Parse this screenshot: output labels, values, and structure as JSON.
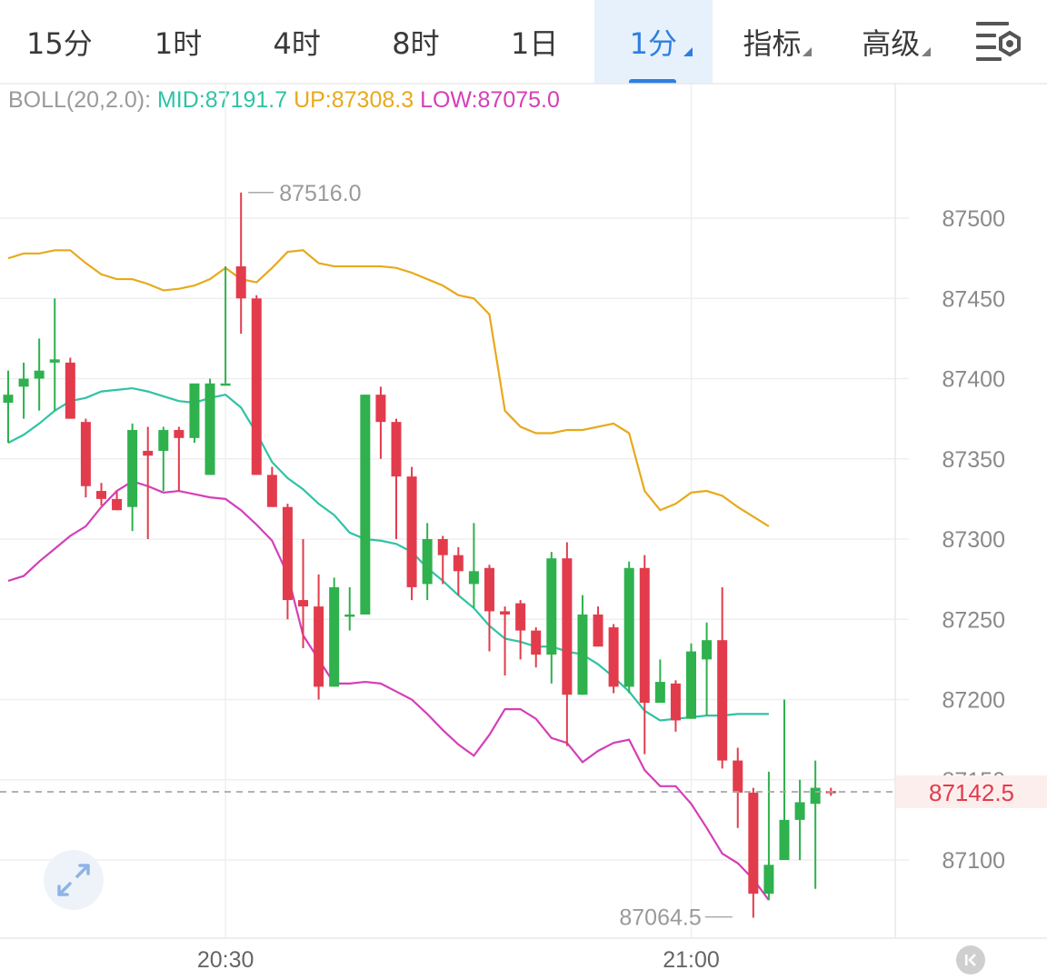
{
  "tabs": [
    {
      "label": "15分",
      "active": false,
      "dropdown": false
    },
    {
      "label": "1时",
      "active": false,
      "dropdown": false
    },
    {
      "label": "4时",
      "active": false,
      "dropdown": false
    },
    {
      "label": "8时",
      "active": false,
      "dropdown": false
    },
    {
      "label": "1日",
      "active": false,
      "dropdown": false
    },
    {
      "label": "1分",
      "active": true,
      "dropdown": true
    },
    {
      "label": "指标",
      "active": false,
      "dropdown": true
    },
    {
      "label": "高级",
      "active": false,
      "dropdown": true
    }
  ],
  "settings_icon": "chart-settings-icon",
  "indicator": {
    "name": "BOLL(20,2.0):",
    "mid_label": "MID:87191.7",
    "up_label": "UP:87308.3",
    "low_label": "LOW:87075.0",
    "colors": {
      "name": "#9a9a9a",
      "mid": "#2fc3a4",
      "up": "#e8a91b",
      "low": "#d43fb8"
    }
  },
  "chart_data": {
    "type": "candlestick",
    "interval": "1分",
    "y_ticks": [
      87500,
      87450,
      87400,
      87350,
      87300,
      87250,
      87200,
      87150,
      87100
    ],
    "ylim": [
      87050,
      87660
    ],
    "x_ticks": [
      {
        "label": "20:30",
        "index": 14
      },
      {
        "label": "21:00",
        "index": 44
      }
    ],
    "current_price": 87142.5,
    "current_price_label": "87142.5",
    "max_marker": {
      "value": 87516.0,
      "label": "87516.0",
      "index": 15
    },
    "min_marker": {
      "value": 87064.5,
      "label": "87064.5",
      "index": 47
    },
    "colors": {
      "up": "#2fb14e",
      "down": "#e23c4c",
      "grid": "#efefef",
      "axis_text": "#8a8a8a"
    },
    "candles": [
      [
        87385,
        87405,
        87390,
        87360
      ],
      [
        87395,
        87410,
        87400,
        87375
      ],
      [
        87400,
        87425,
        87405,
        87380
      ],
      [
        87410,
        87450,
        87412,
        87380
      ],
      [
        87410,
        87413,
        87375,
        87375
      ],
      [
        87373,
        87375,
        87333,
        87326
      ],
      [
        87330,
        87335,
        87325,
        87321
      ],
      [
        87325,
        87330,
        87318,
        87318
      ],
      [
        87320,
        87372,
        87368,
        87305
      ],
      [
        87355,
        87370,
        87352,
        87300
      ],
      [
        87355,
        87370,
        87368,
        87330
      ],
      [
        87368,
        87370,
        87363,
        87330
      ],
      [
        87363,
        87368,
        87397,
        87360
      ],
      [
        87340,
        87400,
        87397,
        87340
      ],
      [
        87397,
        87470,
        87397,
        87397
      ],
      [
        87470,
        87516,
        87450,
        87428
      ],
      [
        87450,
        87452,
        87340,
        87340
      ],
      [
        87340,
        87345,
        87320,
        87320
      ],
      [
        87320,
        87322,
        87262,
        87250
      ],
      [
        87262,
        87300,
        87258,
        87232
      ],
      [
        87258,
        87278,
        87208,
        87200
      ],
      [
        87208,
        87276,
        87270,
        87208
      ],
      [
        87253,
        87270,
        87253,
        87243
      ],
      [
        87253,
        87390,
        87390,
        87253
      ],
      [
        87390,
        87395,
        87373,
        87350
      ],
      [
        87373,
        87375,
        87339,
        87300
      ],
      [
        87339,
        87345,
        87270,
        87262
      ],
      [
        87272,
        87310,
        87300,
        87262
      ],
      [
        87300,
        87302,
        87290,
        87272
      ],
      [
        87290,
        87295,
        87280,
        87265
      ],
      [
        87272,
        87310,
        87280,
        87257
      ],
      [
        87282,
        87284,
        87255,
        87230
      ],
      [
        87255,
        87258,
        87253,
        87215
      ],
      [
        87260,
        87262,
        87243,
        87225
      ],
      [
        87243,
        87245,
        87228,
        87220
      ],
      [
        87228,
        87292,
        87288,
        87210
      ],
      [
        87288,
        87298,
        87203,
        87171
      ],
      [
        87203,
        87265,
        87253,
        87203
      ],
      [
        87253,
        87258,
        87233,
        87233
      ],
      [
        87245,
        87247,
        87208,
        87204
      ],
      [
        87208,
        87286,
        87282,
        87204
      ],
      [
        87282,
        87290,
        87198,
        87166
      ],
      [
        87198,
        87225,
        87211,
        87198
      ],
      [
        87210,
        87212,
        87187,
        87180
      ],
      [
        87188,
        87235,
        87230,
        87188
      ],
      [
        87225,
        87248,
        87237,
        87190
      ],
      [
        87237,
        87270,
        87162,
        87157
      ],
      [
        87162,
        87170,
        87142,
        87120
      ],
      [
        87142,
        87145,
        87079,
        87064
      ],
      [
        87079,
        87155,
        87097,
        87075
      ],
      [
        87100,
        87200,
        87125,
        87100
      ],
      [
        87125,
        87150,
        87136,
        87100
      ],
      [
        87135,
        87162,
        87145,
        87082
      ],
      [
        87143,
        87145,
        87142,
        87140
      ]
    ],
    "boll_up": [
      87475,
      87478,
      87478,
      87480,
      87480,
      87472,
      87465,
      87462,
      87462,
      87459,
      87455,
      87456,
      87458,
      87462,
      87469,
      87462,
      87460,
      87469,
      87479,
      87480,
      87472,
      87470,
      87470,
      87470,
      87470,
      87469,
      87466,
      87462,
      87458,
      87452,
      87450,
      87440,
      87380,
      87370,
      87366,
      87366,
      87368,
      87368,
      87370,
      87372,
      87366,
      87330,
      87318,
      87322,
      87329,
      87330,
      87327,
      87320,
      87314,
      87308
    ],
    "boll_mid": [
      87360,
      87365,
      87372,
      87380,
      87386,
      87388,
      87392,
      87393,
      87394,
      87392,
      87389,
      87386,
      87385,
      87388,
      87390,
      87382,
      87366,
      87348,
      87338,
      87331,
      87322,
      87315,
      87304,
      87300,
      87299,
      87297,
      87292,
      87282,
      87274,
      87265,
      87257,
      87246,
      87238,
      87236,
      87233,
      87233,
      87230,
      87228,
      87222,
      87214,
      87205,
      87193,
      87187,
      87188,
      87189,
      87190,
      87190,
      87191,
      87191,
      87191
    ],
    "boll_low": [
      87274,
      87277,
      87286,
      87294,
      87302,
      87308,
      87320,
      87330,
      87336,
      87333,
      87329,
      87330,
      87328,
      87326,
      87325,
      87318,
      87309,
      87299,
      87278,
      87240,
      87225,
      87210,
      87210,
      87211,
      87210,
      87205,
      87200,
      87191,
      87181,
      87172,
      87165,
      87178,
      87194,
      87194,
      87188,
      87176,
      87173,
      87161,
      87168,
      87173,
      87175,
      87156,
      87146,
      87146,
      87135,
      87120,
      87104,
      87098,
      87088,
      87075
    ]
  },
  "fullscreen_icon": "expand-arrows-icon",
  "back_icon": "skip-to-start-icon"
}
